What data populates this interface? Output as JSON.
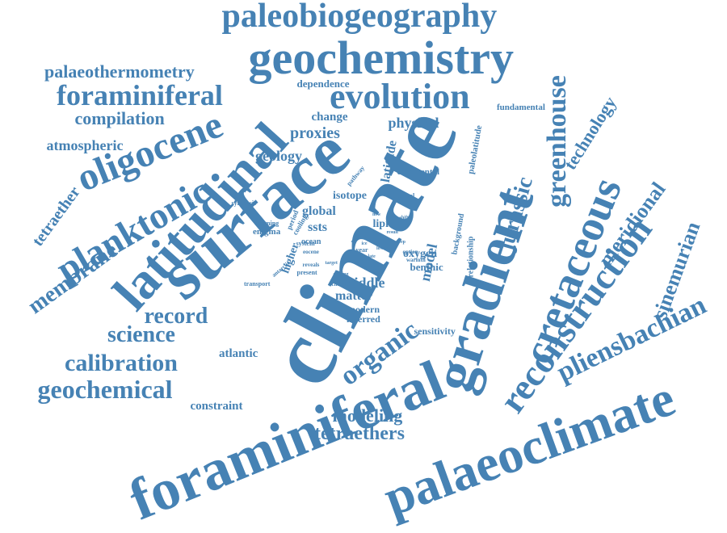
{
  "color": "#4682b4",
  "words": [
    {
      "text": "climate"
    },
    {
      "text": "foraminiferal"
    },
    {
      "text": "surface"
    },
    {
      "text": "gradient"
    },
    {
      "text": "palaeoclimate"
    },
    {
      "text": "geochemistry"
    },
    {
      "text": "latitudinal"
    },
    {
      "text": "cretaceous"
    },
    {
      "text": "oligocene"
    },
    {
      "text": "planktonic"
    },
    {
      "text": "paleobiogeography"
    },
    {
      "text": "evolution"
    },
    {
      "text": "foraminiferal"
    },
    {
      "text": "reconstruction"
    },
    {
      "text": "pliensbachian"
    },
    {
      "text": "greenhouse"
    },
    {
      "text": "jurassic"
    },
    {
      "text": "organic"
    },
    {
      "text": "geochemical"
    },
    {
      "text": "calibration"
    },
    {
      "text": "science"
    },
    {
      "text": "record"
    },
    {
      "text": "membrane"
    },
    {
      "text": "sinemurian"
    },
    {
      "text": "meridional"
    },
    {
      "text": "technology"
    },
    {
      "text": "tetraethers"
    },
    {
      "text": "modeling"
    },
    {
      "text": "palaeothermometry"
    },
    {
      "text": "compilation"
    },
    {
      "text": "tetraether"
    },
    {
      "text": "atmospheric"
    },
    {
      "text": "proxies"
    },
    {
      "text": "geology"
    },
    {
      "text": "physical"
    },
    {
      "text": "change"
    },
    {
      "text": "model"
    },
    {
      "text": "middle"
    },
    {
      "text": "matter"
    },
    {
      "text": "constraint"
    },
    {
      "text": "atlantic"
    },
    {
      "text": "dependence"
    },
    {
      "text": "latitude"
    },
    {
      "text": "global"
    },
    {
      "text": "ssts"
    },
    {
      "text": "isotope"
    },
    {
      "text": "lipid"
    },
    {
      "text": "oxygen"
    },
    {
      "text": "benthic"
    },
    {
      "text": "sensitivity"
    },
    {
      "text": "inferred"
    },
    {
      "text": "modern"
    },
    {
      "text": "higher"
    },
    {
      "text": "continental"
    },
    {
      "text": "paleolatitude"
    },
    {
      "text": "fundamental"
    },
    {
      "text": "enigma"
    },
    {
      "text": "warming"
    },
    {
      "text": "synthesis"
    },
    {
      "text": "transport"
    },
    {
      "text": "ocean"
    },
    {
      "text": "system"
    },
    {
      "text": "estimate"
    },
    {
      "text": "sheet"
    },
    {
      "text": "relationship"
    },
    {
      "text": "background"
    },
    {
      "text": "eocene"
    },
    {
      "text": "year"
    },
    {
      "text": "past"
    },
    {
      "text": "interval"
    },
    {
      "text": "pathway"
    },
    {
      "text": "cooling"
    },
    {
      "text": "period"
    },
    {
      "text": "antarctic"
    },
    {
      "text": "present"
    },
    {
      "text": "reveals"
    },
    {
      "text": "target"
    },
    {
      "text": "choice"
    },
    {
      "text": "method"
    },
    {
      "text": "drilling"
    },
    {
      "text": "warmth"
    },
    {
      "text": "option"
    },
    {
      "text": "result"
    },
    {
      "text": "late"
    },
    {
      "text": "ice"
    },
    {
      "text": "deep"
    },
    {
      "text": "new"
    },
    {
      "text": "lower"
    },
    {
      "text": "site"
    },
    {
      "text": "shift"
    }
  ]
}
